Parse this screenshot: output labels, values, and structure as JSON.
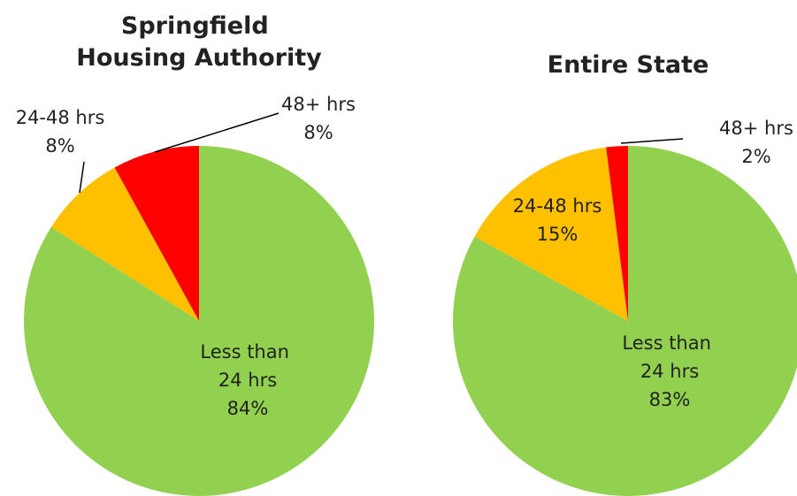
{
  "chart_data": [
    {
      "type": "pie",
      "title": "Springfield Housing Authority",
      "categories": [
        "Less than 24 hrs",
        "24-48 hrs",
        "48+ hrs"
      ],
      "values": [
        84,
        8,
        8
      ],
      "value_labels": [
        "84%",
        "8%",
        "8%"
      ],
      "colors": [
        "#92d050",
        "#ffc000",
        "#ff0000"
      ]
    },
    {
      "type": "pie",
      "title": "Entire State",
      "categories": [
        "Less than 24 hrs",
        "24-48 hrs",
        "48+ hrs"
      ],
      "values": [
        83,
        15,
        2
      ],
      "value_labels": [
        "83%",
        "15%",
        "2%"
      ],
      "colors": [
        "#92d050",
        "#ffc000",
        "#ff0000"
      ]
    }
  ]
}
